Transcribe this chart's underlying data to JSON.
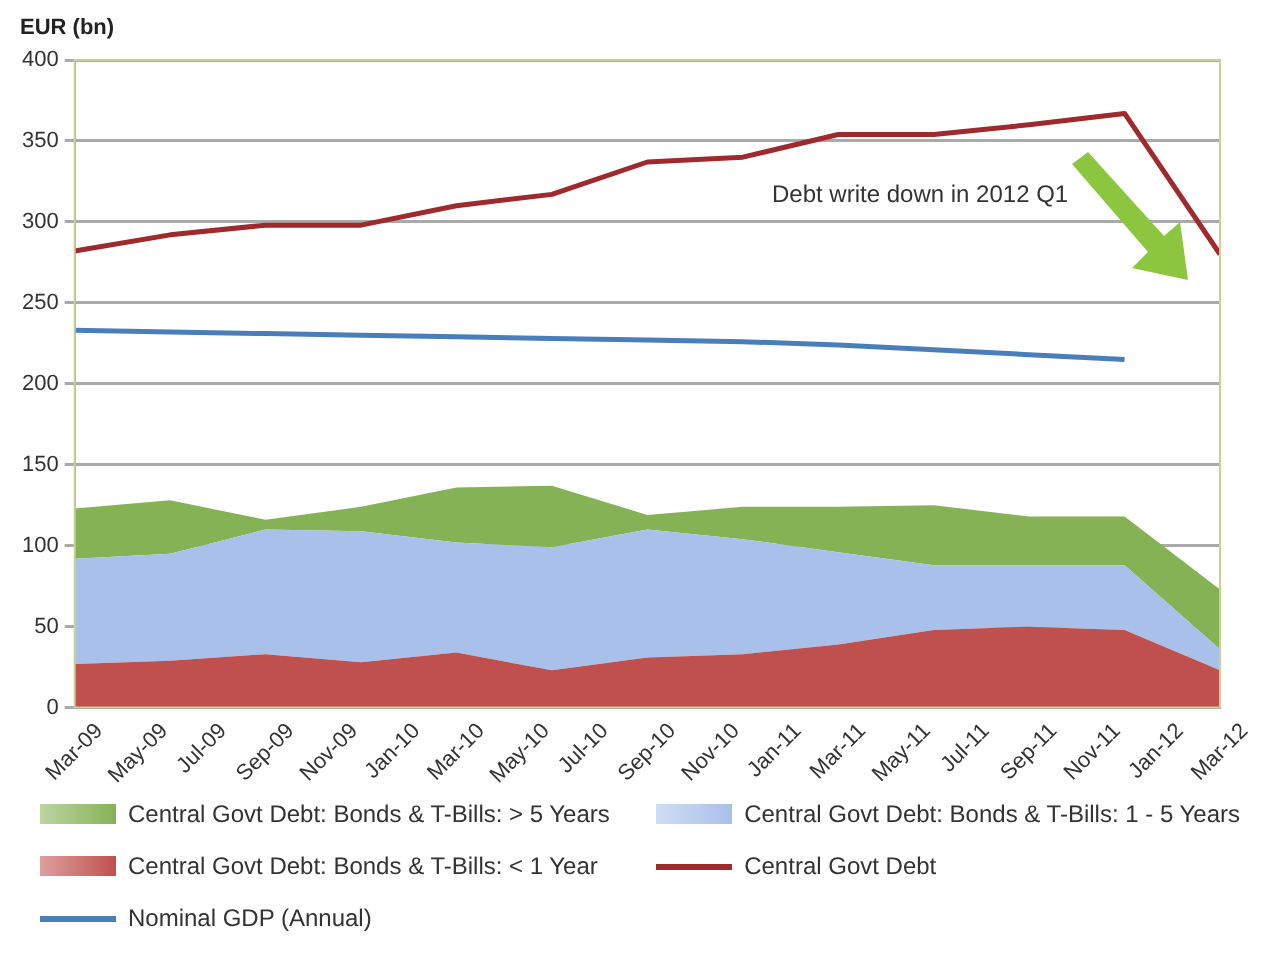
{
  "chart_data": {
    "type": "area",
    "ylabel": "EUR (bn)",
    "x": [
      "2009-03",
      "2009-06",
      "2009-09",
      "2009-12",
      "2010-03",
      "2010-06",
      "2010-09",
      "2010-12",
      "2011-03",
      "2011-06",
      "2011-09",
      "2011-12",
      "2012-03"
    ],
    "stacked": true,
    "series": [
      {
        "name": "Central Govt Debt: Bonds & T-Bills: < 1 Year",
        "type": "area",
        "color": "#c0504d",
        "values": [
          27,
          29,
          33,
          28,
          34,
          23,
          31,
          33,
          39,
          48,
          50,
          48,
          23
        ]
      },
      {
        "name": "Central Govt Debt: Bonds & T-Bills: 1 - 5 Years",
        "type": "area",
        "color": "#a9c0ea",
        "values": [
          65,
          66,
          77,
          81,
          68,
          76,
          79,
          71,
          57,
          40,
          38,
          40,
          13
        ]
      },
      {
        "name": "Central Govt Debt: Bonds & T-Bills: > 5 Years",
        "type": "area",
        "color": "#86b256",
        "values": [
          31,
          33,
          6,
          15,
          34,
          38,
          9,
          20,
          28,
          37,
          30,
          30,
          37
        ]
      },
      {
        "name": "Central Govt Debt",
        "type": "line",
        "color": "#9e2a2e",
        "values": [
          282,
          292,
          298,
          298,
          310,
          317,
          337,
          340,
          354,
          354,
          360,
          367,
          280
        ]
      },
      {
        "name": "Nominal GDP (Annual)",
        "type": "line",
        "color": "#4a7ebb",
        "values": [
          233,
          232,
          231,
          230,
          229,
          228,
          227,
          226,
          224,
          221,
          218,
          215,
          null
        ]
      }
    ],
    "xlim": [
      "2009-03",
      "2012-03"
    ],
    "xticks": [
      {
        "value": "2009-03",
        "label": "Mar-09"
      },
      {
        "value": "2009-05",
        "label": "May-09"
      },
      {
        "value": "2009-07",
        "label": "Jul-09"
      },
      {
        "value": "2009-09",
        "label": "Sep-09"
      },
      {
        "value": "2009-11",
        "label": "Nov-09"
      },
      {
        "value": "2010-01",
        "label": "Jan-10"
      },
      {
        "value": "2010-03",
        "label": "Mar-10"
      },
      {
        "value": "2010-05",
        "label": "May-10"
      },
      {
        "value": "2010-07",
        "label": "Jul-10"
      },
      {
        "value": "2010-09",
        "label": "Sep-10"
      },
      {
        "value": "2010-11",
        "label": "Nov-10"
      },
      {
        "value": "2011-01",
        "label": "Jan-11"
      },
      {
        "value": "2011-03",
        "label": "Mar-11"
      },
      {
        "value": "2011-05",
        "label": "May-11"
      },
      {
        "value": "2011-07",
        "label": "Jul-11"
      },
      {
        "value": "2011-09",
        "label": "Sep-11"
      },
      {
        "value": "2011-11",
        "label": "Nov-11"
      },
      {
        "value": "2012-01",
        "label": "Jan-12"
      },
      {
        "value": "2012-03",
        "label": "Mar-12"
      }
    ],
    "ylim": [
      0,
      400
    ],
    "yticks": [
      0,
      50,
      100,
      150,
      200,
      250,
      300,
      350,
      400
    ],
    "grid": "y",
    "legend": "bottom",
    "annotations": [
      "Debt write down in 2012 Q1"
    ]
  }
}
